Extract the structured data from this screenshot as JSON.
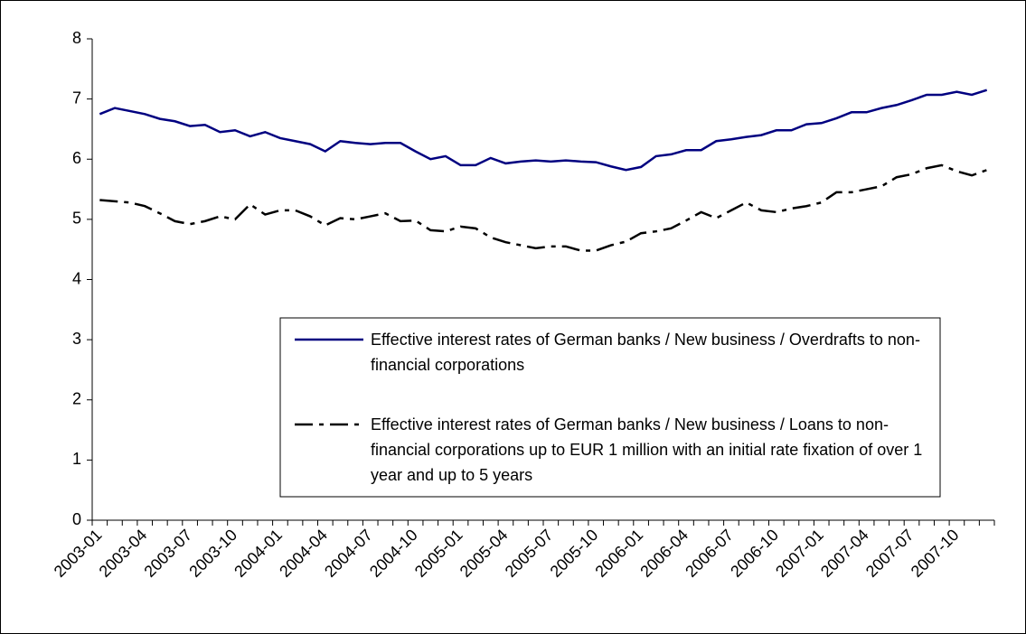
{
  "chart_data": {
    "type": "line",
    "categories": [
      "2003-01",
      null,
      null,
      "2003-04",
      null,
      null,
      "2003-07",
      null,
      null,
      "2003-10",
      null,
      null,
      "2004-01",
      null,
      null,
      "2004-04",
      null,
      null,
      "2004-07",
      null,
      null,
      "2004-10",
      null,
      null,
      "2005-01",
      null,
      null,
      "2005-04",
      null,
      null,
      "2005-07",
      null,
      null,
      "2005-10",
      null,
      null,
      "2006-01",
      null,
      null,
      "2006-04",
      null,
      null,
      "2006-07",
      null,
      null,
      "2006-10",
      null,
      null,
      "2007-01",
      null,
      null,
      "2007-04",
      null,
      null,
      "2007-07",
      null,
      null,
      "2007-10",
      null,
      null
    ],
    "series": [
      {
        "name": "Effective interest rates of German banks / New business / Overdrafts to non-financial corporations",
        "color": "#000080",
        "style": "solid",
        "values": [
          6.75,
          6.85,
          6.8,
          6.75,
          6.67,
          6.63,
          6.55,
          6.57,
          6.45,
          6.48,
          6.38,
          6.45,
          6.35,
          6.3,
          6.25,
          6.13,
          6.3,
          6.27,
          6.25,
          6.27,
          6.27,
          6.13,
          6.0,
          6.05,
          5.9,
          5.9,
          6.02,
          5.93,
          5.96,
          5.98,
          5.96,
          5.98,
          5.96,
          5.95,
          5.88,
          5.82,
          5.87,
          6.05,
          6.08,
          6.15,
          6.15,
          6.3,
          6.33,
          6.37,
          6.4,
          6.48,
          6.48,
          6.58,
          6.6,
          6.68,
          6.78,
          6.78,
          6.85,
          6.9,
          6.98,
          7.07,
          7.07,
          7.12,
          7.07,
          7.15
        ]
      },
      {
        "name": "Effective interest rates of German banks / New business / Loans to non-financial corporations up to EUR 1 million with an initial rate fixation of over 1 year and up to 5 years",
        "color": "#000000",
        "style": "dashdot",
        "values": [
          5.32,
          5.3,
          5.28,
          5.22,
          5.1,
          4.97,
          4.92,
          4.97,
          5.05,
          5.0,
          5.25,
          5.08,
          5.15,
          5.15,
          5.05,
          4.9,
          5.02,
          5.0,
          5.05,
          5.1,
          4.97,
          4.98,
          4.82,
          4.8,
          4.88,
          4.85,
          4.7,
          4.62,
          4.57,
          4.52,
          4.55,
          4.55,
          4.48,
          4.48,
          4.57,
          4.63,
          4.77,
          4.8,
          4.85,
          4.98,
          5.12,
          5.02,
          5.15,
          5.28,
          5.15,
          5.12,
          5.18,
          5.22,
          5.28,
          5.45,
          5.45,
          5.5,
          5.55,
          5.7,
          5.75,
          5.85,
          5.9,
          5.8,
          5.73,
          5.82
        ]
      }
    ],
    "ylim": [
      0,
      8
    ],
    "yticks": [
      0,
      1,
      2,
      3,
      4,
      5,
      6,
      7,
      8
    ],
    "grid": false,
    "legend": "lower right"
  }
}
